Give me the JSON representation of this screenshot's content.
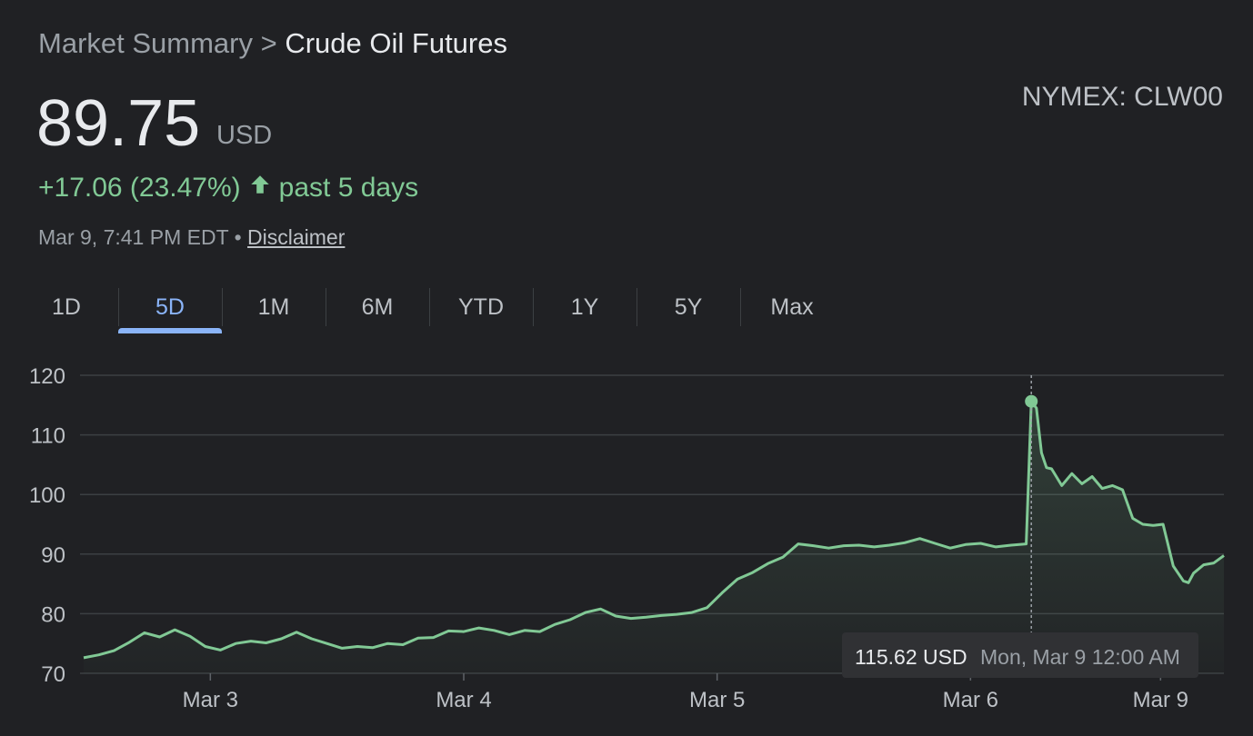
{
  "breadcrumb": {
    "parent": "Market Summary",
    "separator": ">",
    "current": "Crude Oil Futures"
  },
  "ticker": "NYMEX: CLW00",
  "price": {
    "value": "89.75",
    "currency": "USD"
  },
  "change": {
    "text": "+17.06 (23.47%)",
    "period": "past 5 days",
    "direction": "up",
    "color": "#81c995"
  },
  "meta": {
    "timestamp": "Mar 9, 7:41 PM EDT",
    "separator": "•",
    "disclaimer": "Disclaimer"
  },
  "tabs": [
    {
      "label": "1D",
      "active": false
    },
    {
      "label": "5D",
      "active": true
    },
    {
      "label": "1M",
      "active": false
    },
    {
      "label": "6M",
      "active": false
    },
    {
      "label": "YTD",
      "active": false
    },
    {
      "label": "1Y",
      "active": false
    },
    {
      "label": "5Y",
      "active": false
    },
    {
      "label": "Max",
      "active": false
    }
  ],
  "tooltip": {
    "value": "115.62 USD",
    "time": "Mon, Mar 9 12:00 AM"
  },
  "chart_data": {
    "type": "line",
    "title": "",
    "xlabel": "",
    "ylabel": "",
    "ylim": [
      70,
      120
    ],
    "yticks": [
      120,
      110,
      100,
      90,
      80,
      70
    ],
    "xticks": [
      "Mar 3",
      "Mar 4",
      "Mar 5",
      "Mar 6",
      "Mar 9"
    ],
    "xtick_positions": [
      0.5,
      1.5,
      2.5,
      3.5,
      4.25
    ],
    "xlim": [
      0,
      4.5
    ],
    "grid": true,
    "line_color": "#81c995",
    "highlight": {
      "x": 3.74,
      "y": 115.62
    },
    "x": [
      0.0,
      0.06,
      0.12,
      0.18,
      0.24,
      0.3,
      0.36,
      0.42,
      0.48,
      0.54,
      0.6,
      0.66,
      0.72,
      0.78,
      0.84,
      0.9,
      0.96,
      1.02,
      1.08,
      1.14,
      1.2,
      1.26,
      1.32,
      1.38,
      1.44,
      1.5,
      1.56,
      1.62,
      1.68,
      1.74,
      1.8,
      1.86,
      1.92,
      1.98,
      2.04,
      2.1,
      2.16,
      2.22,
      2.28,
      2.34,
      2.4,
      2.46,
      2.52,
      2.58,
      2.64,
      2.7,
      2.76,
      2.82,
      2.88,
      2.94,
      3.0,
      3.06,
      3.12,
      3.18,
      3.24,
      3.3,
      3.36,
      3.42,
      3.48,
      3.54,
      3.6,
      3.66,
      3.72,
      3.74,
      3.76,
      3.78,
      3.8,
      3.82,
      3.86,
      3.9,
      3.94,
      3.98,
      4.02,
      4.06,
      4.1,
      4.14,
      4.18,
      4.22,
      4.26,
      4.3,
      4.34,
      4.36,
      4.38,
      4.42,
      4.46,
      4.5
    ],
    "values": [
      72.6,
      73.1,
      73.8,
      75.2,
      76.8,
      76.1,
      77.3,
      76.2,
      74.5,
      73.9,
      75.0,
      75.4,
      75.1,
      75.8,
      76.9,
      75.8,
      75.0,
      74.2,
      74.5,
      74.3,
      75.0,
      74.8,
      75.9,
      76.0,
      77.1,
      77.0,
      77.6,
      77.2,
      76.5,
      77.2,
      77.0,
      78.2,
      79.0,
      80.2,
      80.8,
      79.6,
      79.2,
      79.4,
      79.7,
      79.9,
      80.2,
      81.0,
      83.5,
      85.8,
      86.9,
      88.4,
      89.5,
      91.7,
      91.4,
      91.0,
      91.4,
      91.5,
      91.2,
      91.5,
      91.9,
      92.6,
      91.8,
      91.0,
      91.6,
      91.8,
      91.2,
      91.5,
      91.7,
      115.62,
      114.5,
      107.0,
      104.5,
      104.3,
      101.5,
      103.5,
      101.8,
      103.0,
      101.0,
      101.5,
      100.8,
      96.0,
      95.0,
      94.8,
      95.0,
      88.0,
      85.5,
      85.2,
      86.8,
      88.2,
      88.5,
      89.75
    ]
  }
}
